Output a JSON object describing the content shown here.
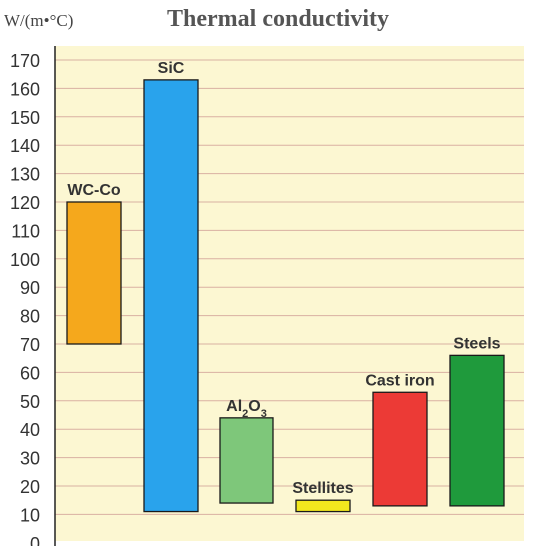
{
  "chart_data": {
    "type": "bar",
    "title": "Thermal conductivity",
    "ylabel": "W/(m•°C)",
    "ylim": [
      0,
      170
    ],
    "yticks": [
      0,
      10,
      20,
      30,
      40,
      50,
      60,
      70,
      80,
      90,
      100,
      110,
      120,
      130,
      140,
      150,
      160,
      170
    ],
    "grid": true,
    "bars": [
      {
        "label": "WC-Co",
        "low": 70,
        "high": 120,
        "color": "#f5a81c"
      },
      {
        "label": "SiC",
        "low": 11,
        "high": 163,
        "color": "#29a3ec"
      },
      {
        "label": "Al2O3",
        "low": 14,
        "high": 44,
        "color": "#7ec77a"
      },
      {
        "label": "Stellites",
        "low": 11,
        "high": 15,
        "color": "#f2e81e"
      },
      {
        "label": "Cast iron",
        "low": 13,
        "high": 53,
        "color": "#ec3a36"
      },
      {
        "label": "Steels",
        "low": 13,
        "high": 66,
        "color": "#1f9a3c"
      }
    ]
  },
  "colors": {
    "plot_background": "#fcf7d2",
    "gridline": "#d9b0a2",
    "axis": "#222222"
  }
}
